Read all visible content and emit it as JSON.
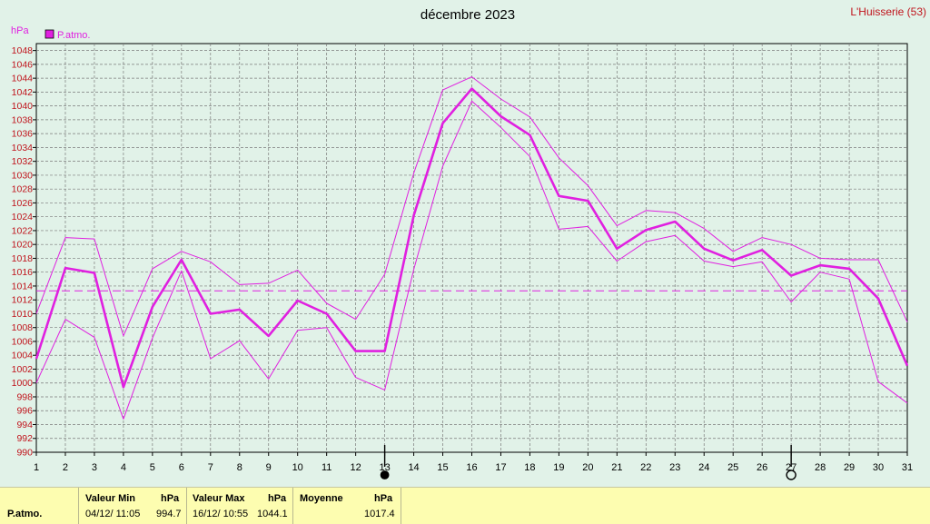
{
  "station": "L'Huisserie (53)",
  "chart_data": {
    "type": "line",
    "title": "décembre 2023",
    "ylabel": "hPa",
    "legend": [
      "P.atmo."
    ],
    "legend_position": "top-left",
    "ylim": [
      990,
      1049
    ],
    "yticks": [
      990,
      992,
      994,
      996,
      998,
      1000,
      1002,
      1004,
      1006,
      1008,
      1010,
      1012,
      1014,
      1016,
      1018,
      1020,
      1022,
      1024,
      1026,
      1028,
      1030,
      1032,
      1034,
      1036,
      1038,
      1040,
      1042,
      1044,
      1046,
      1048
    ],
    "x": [
      1,
      2,
      3,
      4,
      5,
      6,
      7,
      8,
      9,
      10,
      11,
      12,
      13,
      14,
      15,
      16,
      17,
      18,
      19,
      20,
      21,
      22,
      23,
      24,
      25,
      26,
      27,
      28,
      29,
      30,
      31
    ],
    "series": [
      {
        "name": "P.atmo.",
        "role": "mean",
        "values": [
          1003.5,
          1016.6,
          1015.9,
          999.4,
          1011.0,
          1017.8,
          1010.0,
          1010.6,
          1006.8,
          1011.9,
          1010.0,
          1004.6,
          1004.6,
          1024.2,
          1037.5,
          1042.5,
          1038.5,
          1035.8,
          1027.0,
          1026.3,
          1019.4,
          1022.1,
          1023.3,
          1019.4,
          1017.7,
          1019.2,
          1015.5,
          1017.0,
          1016.5,
          1012.2,
          1002.5
        ]
      },
      {
        "role": "max",
        "values": [
          1010.0,
          1021.0,
          1020.8,
          1006.8,
          1016.5,
          1019.0,
          1017.5,
          1014.2,
          1014.4,
          1016.3,
          1011.5,
          1009.2,
          1015.7,
          1030.3,
          1042.3,
          1044.2,
          1041.0,
          1038.4,
          1032.5,
          1028.5,
          1022.7,
          1024.9,
          1024.6,
          1022.3,
          1019.0,
          1021.0,
          1020.0,
          1018.0,
          1017.8,
          1017.8,
          1008.8
        ]
      },
      {
        "role": "min",
        "values": [
          1000.0,
          1009.2,
          1006.6,
          994.8,
          1006.5,
          1016.2,
          1003.5,
          1006.1,
          1000.6,
          1007.6,
          1008.0,
          1000.8,
          999.0,
          1016.4,
          1031.3,
          1040.7,
          1036.9,
          1032.7,
          1022.2,
          1022.6,
          1017.6,
          1020.4,
          1021.3,
          1017.6,
          1016.8,
          1017.5,
          1011.7,
          1016.0,
          1015.0,
          1000.2,
          997.1
        ]
      }
    ],
    "reference_line": {
      "label": "Moyenne",
      "value": 1013.3
    },
    "markers": [
      {
        "day": 13,
        "symbol": "filled-circle"
      },
      {
        "day": 27,
        "symbol": "open-circle"
      }
    ],
    "grid": true
  },
  "footer": {
    "param_label": "P.atmo.",
    "min": {
      "header": "Valeur Min",
      "unit": "hPa",
      "date": "04/12/  11:05",
      "value": "994.7"
    },
    "max": {
      "header": "Valeur Max",
      "unit": "hPa",
      "date": "16/12/  10:55",
      "value": "1044.1"
    },
    "avg": {
      "header": "Moyenne",
      "unit": "hPa",
      "value": "1017.4"
    }
  },
  "colors": {
    "line": "#e020e0",
    "grid": "#7a7a7a",
    "background": "#e1f2e8",
    "footer": "#fdfdb0",
    "text": "#000000"
  }
}
